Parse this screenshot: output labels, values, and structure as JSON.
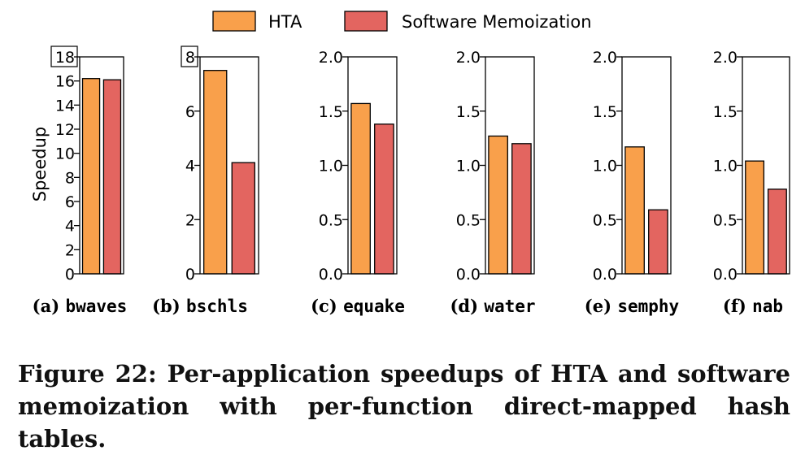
{
  "legend": [
    {
      "name": "HTA",
      "color": "#f9a04b"
    },
    {
      "name": "Software Memoization",
      "color": "#e36560"
    }
  ],
  "ylabel": "Speedup",
  "caption": "Figure 22: Per-application speedups of HTA and software memoization with per-function direct-mapped hash tables.",
  "chart_data": [
    {
      "type": "bar",
      "prefix": "(a)",
      "app": "bwaves",
      "categories": [
        "HTA",
        "Software Memoization"
      ],
      "values": [
        16.2,
        16.1
      ],
      "ylim": [
        0,
        18
      ],
      "ticks": [
        "0",
        "2",
        "4",
        "6",
        "8",
        "10",
        "12",
        "14",
        "16",
        "18"
      ],
      "boxed_top_tick": "18"
    },
    {
      "type": "bar",
      "prefix": "(b)",
      "app": "bschls",
      "categories": [
        "HTA",
        "Software Memoization"
      ],
      "values": [
        7.5,
        4.1
      ],
      "ylim": [
        0,
        8
      ],
      "ticks": [
        "0",
        "2",
        "4",
        "6",
        "8"
      ],
      "boxed_top_tick": "8"
    },
    {
      "type": "bar",
      "prefix": "(c)",
      "app": "equake",
      "categories": [
        "HTA",
        "Software Memoization"
      ],
      "values": [
        1.57,
        1.38
      ],
      "ylim": [
        0,
        2
      ],
      "ticks": [
        "0.0",
        "0.5",
        "1.0",
        "1.5",
        "2.0"
      ],
      "boxed_top_tick": ""
    },
    {
      "type": "bar",
      "prefix": "(d)",
      "app": "water",
      "categories": [
        "HTA",
        "Software Memoization"
      ],
      "values": [
        1.27,
        1.2
      ],
      "ylim": [
        0,
        2
      ],
      "ticks": [
        "0.0",
        "0.5",
        "1.0",
        "1.5",
        "2.0"
      ],
      "boxed_top_tick": ""
    },
    {
      "type": "bar",
      "prefix": "(e)",
      "app": "semphy",
      "categories": [
        "HTA",
        "Software Memoization"
      ],
      "values": [
        1.17,
        0.59
      ],
      "ylim": [
        0,
        2
      ],
      "ticks": [
        "0.0",
        "0.5",
        "1.0",
        "1.5",
        "2.0"
      ],
      "boxed_top_tick": ""
    },
    {
      "type": "bar",
      "prefix": "(f)",
      "app": "nab",
      "categories": [
        "HTA",
        "Software Memoization"
      ],
      "values": [
        1.04,
        0.78
      ],
      "ylim": [
        0,
        2
      ],
      "ticks": [
        "0.0",
        "0.5",
        "1.0",
        "1.5",
        "2.0"
      ],
      "boxed_top_tick": ""
    }
  ]
}
